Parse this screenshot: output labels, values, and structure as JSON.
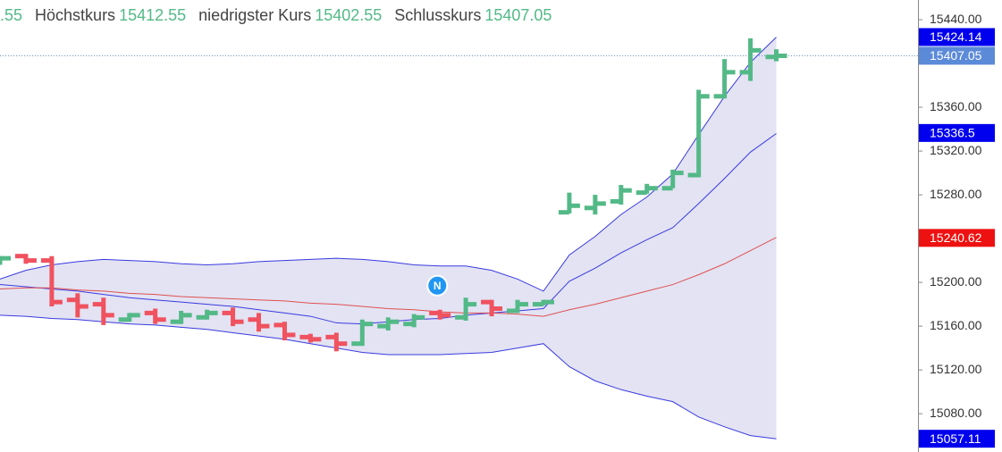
{
  "chart_data": {
    "type": "ohlc",
    "header_fragment": ".55",
    "header": [
      {
        "label": "Höchstkurs",
        "value": 15412.55
      },
      {
        "label": "niedrigster Kurs",
        "value": 15402.55
      },
      {
        "label": "Schlusskurs",
        "value": 15407.05
      }
    ],
    "ylim": [
      15045,
      15458
    ],
    "yticks": [
      {
        "value": 15440,
        "label": "15440.00"
      },
      {
        "value": 15360,
        "label": "15360.00"
      },
      {
        "value": 15320,
        "label": "15320.00"
      },
      {
        "value": 15280,
        "label": "15280.00"
      },
      {
        "value": 15200,
        "label": "15200.00"
      },
      {
        "value": 15160,
        "label": "15160.00"
      },
      {
        "value": 15120,
        "label": "15120.00"
      },
      {
        "value": 15080,
        "label": "15080.00"
      }
    ],
    "up_color": "#53b987",
    "down_color": "#f0525f",
    "open": [
      15220,
      15224,
      15220,
      15184,
      15180,
      15166,
      15172,
      15164,
      15168,
      15172,
      15166,
      15161,
      15150,
      15150,
      15144,
      15160,
      15162,
      15172,
      15168,
      15182,
      15174,
      15180,
      15264,
      15268,
      15274,
      15282,
      15286,
      15298,
      15370,
      15392,
      15406
    ],
    "high": [
      15224,
      15226,
      15224,
      15190,
      15186,
      15172,
      15176,
      15174,
      15175,
      15177,
      15172,
      15164,
      15153,
      15154,
      15166,
      15168,
      15171,
      15175,
      15186,
      15184,
      15184,
      15184,
      15282,
      15280,
      15289,
      15290,
      15303,
      15376,
      15404,
      15423,
      15413
    ],
    "low": [
      15216,
      15217,
      15178,
      15168,
      15161,
      15164,
      15162,
      15162,
      15166,
      15160,
      15155,
      15147,
      15145,
      15137,
      15142,
      15156,
      15159,
      15166,
      15165,
      15169,
      15172,
      15179,
      15263,
      15262,
      15271,
      15281,
      15286,
      15296,
      15368,
      15384,
      15402
    ],
    "close": [
      15222,
      15220,
      15182,
      15178,
      15170,
      15170,
      15166,
      15170,
      15172,
      15164,
      15160,
      15152,
      15148,
      15144,
      15162,
      15164,
      15168,
      15170,
      15180,
      15176,
      15180,
      15182,
      15270,
      15272,
      15284,
      15286,
      15300,
      15370,
      15392,
      15412,
      15407
    ],
    "series": [
      {
        "role": "upper",
        "color": "#3a3ae0",
        "values": [
          15203,
          15211,
          15216,
          15219,
          15221,
          15220,
          15219,
          15217,
          15216,
          15217,
          15219,
          15220,
          15221,
          15222,
          15221,
          15219,
          15216,
          15215,
          15215,
          15211,
          15203,
          15192,
          15225,
          15242,
          15262,
          15278,
          15299,
          15335,
          15370,
          15401,
          15424
        ]
      },
      {
        "role": "inner",
        "color": "#3a3ae0",
        "values": [
          15198,
          15196,
          15194,
          15192,
          15189,
          15186,
          15184,
          15182,
          15180,
          15178,
          15175,
          15172,
          15169,
          15163,
          15162,
          15164,
          15166,
          15167,
          15170,
          15172,
          15174,
          15176,
          15201,
          15213,
          15227,
          15239,
          15250,
          15272,
          15295,
          15319,
          15336
        ]
      },
      {
        "role": "middle",
        "color": "#e05050",
        "values": [
          15194,
          15195,
          15195,
          15193,
          15192,
          15190,
          15189,
          15187,
          15186,
          15185,
          15184,
          15183,
          15181,
          15180,
          15178,
          15176,
          15175,
          15173,
          15172,
          15172,
          15171,
          15169,
          15175,
          15180,
          15186,
          15192,
          15198,
          15207,
          15217,
          15229,
          15241
        ]
      },
      {
        "role": "lower",
        "color": "#3a3ae0",
        "values": [
          15170,
          15169,
          15167,
          15166,
          15164,
          15162,
          15161,
          15159,
          15157,
          15154,
          15151,
          15148,
          15144,
          15140,
          15136,
          15134,
          15134,
          15134,
          15135,
          15136,
          15140,
          15144,
          15123,
          15110,
          15102,
          15096,
          15091,
          15077,
          15068,
          15060,
          15057
        ]
      }
    ],
    "band_fill": "#e3e3f3",
    "price_labels": [
      {
        "value": 15424.14,
        "color": "#0000ee"
      },
      {
        "value": 15407.05,
        "color": "#5b8ad8"
      },
      {
        "value": 15336.5,
        "color": "#0000ee"
      },
      {
        "value": 15240.62,
        "color": "#ee1111"
      },
      {
        "value": 15057.11,
        "color": "#0000ee"
      }
    ],
    "last_price_line": 15407.05,
    "event_marker": {
      "text": "N",
      "index": 16.9,
      "value": 15197
    }
  }
}
